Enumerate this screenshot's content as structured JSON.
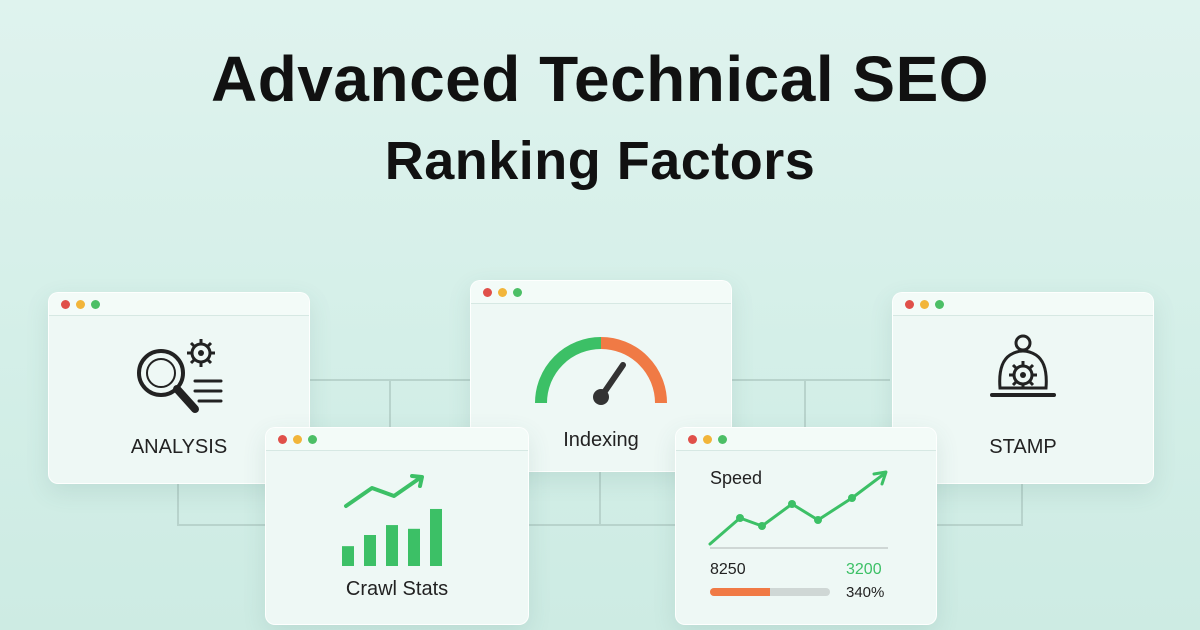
{
  "title": {
    "line1": "Advanced Technical SEO",
    "line2": "Ranking Factors"
  },
  "cards": {
    "analysis": {
      "label": "ANALYSIS",
      "icons": [
        "magnifier-icon",
        "gear-icon",
        "lines-icon"
      ]
    },
    "indexing": {
      "label": "Indexing",
      "gauge": {
        "green_fraction": 0.5,
        "orange_fraction": 0.5
      }
    },
    "stamp": {
      "label": "STAMP",
      "icon": "stamp-gear-icon"
    },
    "crawl_stats": {
      "label": "Crawl Stats",
      "bars": [
        0.32,
        0.5,
        0.66,
        0.6,
        0.92
      ]
    },
    "speed": {
      "label": "Speed",
      "left_value": "8250",
      "right_value": "3200",
      "percent": "340%",
      "progress_fraction": 0.5
    }
  },
  "colors": {
    "green": "#3cc066",
    "orange": "#f07a45",
    "gray": "#cfd7d5"
  }
}
